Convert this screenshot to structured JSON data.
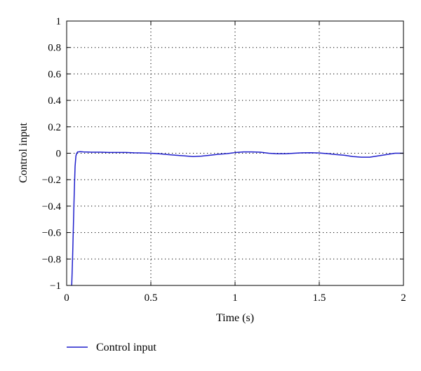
{
  "chart_data": {
    "type": "line",
    "title": "",
    "xlabel": "Time (s)",
    "ylabel": "Control input",
    "xlim": [
      0,
      2
    ],
    "ylim": [
      -1,
      1
    ],
    "xticks": [
      0,
      0.5,
      1,
      1.5,
      2
    ],
    "xtick_labels": [
      "0",
      "0.5",
      "1",
      "1.5",
      "2"
    ],
    "yticks": [
      -1,
      -0.8,
      -0.6,
      -0.4,
      -0.2,
      0,
      0.2,
      0.4,
      0.6,
      0.8,
      1
    ],
    "ytick_labels": [
      "−1",
      "−0.8",
      "−0.6",
      "−0.4",
      "−0.2",
      "0",
      "0.2",
      "0.4",
      "0.6",
      "0.8",
      "1"
    ],
    "grid": true,
    "legend_position": "bottom-left",
    "series": [
      {
        "name": "Control input",
        "color": "#1f1fcc",
        "x": [
          0.03,
          0.035,
          0.04,
          0.045,
          0.05,
          0.055,
          0.06,
          0.065,
          0.07,
          0.08,
          0.1,
          0.15,
          0.2,
          0.25,
          0.3,
          0.35,
          0.4,
          0.45,
          0.5,
          0.55,
          0.6,
          0.65,
          0.7,
          0.75,
          0.8,
          0.85,
          0.9,
          0.95,
          1.0,
          1.05,
          1.1,
          1.15,
          1.2,
          1.25,
          1.3,
          1.35,
          1.4,
          1.45,
          1.5,
          1.55,
          1.6,
          1.65,
          1.7,
          1.75,
          1.8,
          1.85,
          1.9,
          1.95,
          2.0
        ],
        "y": [
          -1.0,
          -0.8,
          -0.55,
          -0.3,
          -0.1,
          -0.02,
          0.0,
          0.01,
          0.01,
          0.012,
          0.01,
          0.008,
          0.008,
          0.006,
          0.006,
          0.006,
          0.003,
          0.002,
          0.0,
          -0.004,
          -0.01,
          -0.015,
          -0.02,
          -0.025,
          -0.022,
          -0.015,
          -0.008,
          -0.003,
          0.005,
          0.01,
          0.01,
          0.008,
          0.0,
          -0.004,
          -0.004,
          0.0,
          0.003,
          0.004,
          0.002,
          -0.003,
          -0.01,
          -0.015,
          -0.025,
          -0.03,
          -0.03,
          -0.02,
          -0.01,
          0.0,
          0.0
        ]
      }
    ]
  }
}
